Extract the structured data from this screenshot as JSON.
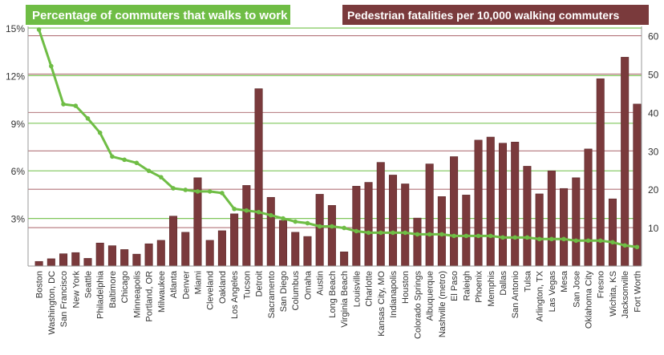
{
  "chart_data": {
    "type": "bar",
    "legend_left": "Percentage of commuters that walks to work",
    "legend_right": "Pedestrian fatalities per 10,000 walking commuters",
    "colors": {
      "line": "#6fbd45",
      "bar": "#7a3a3c",
      "bar_stroke": "#5e2a2c",
      "axis_text": "#333333",
      "left_grid": "#7fc65a",
      "right_grid": "#b3747a"
    },
    "left_axis": {
      "ylim": [
        0,
        15
      ],
      "ticks": [
        3,
        6,
        9,
        12,
        15
      ],
      "tick_labels": [
        "3%",
        "6%",
        "9%",
        "12%",
        "15%"
      ]
    },
    "right_axis": {
      "ylim": [
        0,
        62
      ],
      "ticks": [
        10,
        20,
        30,
        40,
        50,
        60
      ],
      "tick_labels": [
        "10",
        "20",
        "30",
        "40",
        "50",
        "60"
      ]
    },
    "categories": [
      "Boston",
      "Washington, DC",
      "San Francisco",
      "New York",
      "Seattle",
      "Philadelphia",
      "Baltimore",
      "Chicago",
      "Minneapolis",
      "Portland, OR",
      "Milwaukee",
      "Atlanta",
      "Denver",
      "Miami",
      "Cleveland",
      "Oakland",
      "Los Angeles",
      "Tucson",
      "Detroit",
      "Sacramento",
      "San Diego",
      "Columbus",
      "Omaha",
      "Austin",
      "Long Beach",
      "Virginia Beach",
      "Louisville",
      "Charlotte",
      "Kansas City, MO",
      "Indianapolis",
      "Houston",
      "Colorado Springs",
      "Albuquerque",
      "Nashville (metro)",
      "El Paso",
      "Raleigh",
      "Phoenix",
      "Memphis",
      "Dallas",
      "San Antonio",
      "Tulsa",
      "Arlington, TX",
      "Las Vegas",
      "Mesa",
      "San Jose",
      "Oklahoma City",
      "Fresno",
      "Wichita, KS",
      "Jacksonville",
      "Fort Worth"
    ],
    "series": [
      {
        "name": "Percentage of commuters that walks to work",
        "type": "line",
        "values": [
          14.9,
          12.6,
          10.2,
          10.1,
          9.3,
          8.4,
          6.9,
          6.7,
          6.5,
          6.0,
          5.6,
          4.9,
          4.8,
          4.7,
          4.7,
          4.6,
          3.6,
          3.5,
          3.4,
          3.2,
          3.0,
          2.8,
          2.7,
          2.5,
          2.5,
          2.4,
          2.2,
          2.1,
          2.1,
          2.1,
          2.1,
          2.0,
          2.0,
          2.0,
          1.9,
          1.9,
          1.9,
          1.9,
          1.8,
          1.8,
          1.8,
          1.7,
          1.7,
          1.7,
          1.6,
          1.6,
          1.6,
          1.5,
          1.3,
          1.2
        ]
      },
      {
        "name": "Pedestrian fatalities per 10,000 walking commuters",
        "type": "bar",
        "values": [
          1.2,
          1.9,
          3.2,
          3.5,
          2.0,
          6.0,
          5.3,
          4.3,
          3.1,
          5.8,
          6.7,
          13.0,
          8.8,
          23.0,
          6.7,
          9.2,
          13.6,
          21.0,
          46.2,
          17.9,
          11.9,
          8.8,
          7.7,
          18.7,
          15.8,
          3.7,
          20.8,
          21.8,
          27.0,
          23.7,
          21.4,
          12.5,
          26.6,
          18.1,
          28.5,
          18.5,
          32.8,
          33.6,
          32.0,
          32.3,
          26.0,
          18.8,
          24.8,
          20.2,
          23.0,
          30.5,
          48.8,
          17.5,
          54.4,
          42.2
        ]
      }
    ]
  }
}
